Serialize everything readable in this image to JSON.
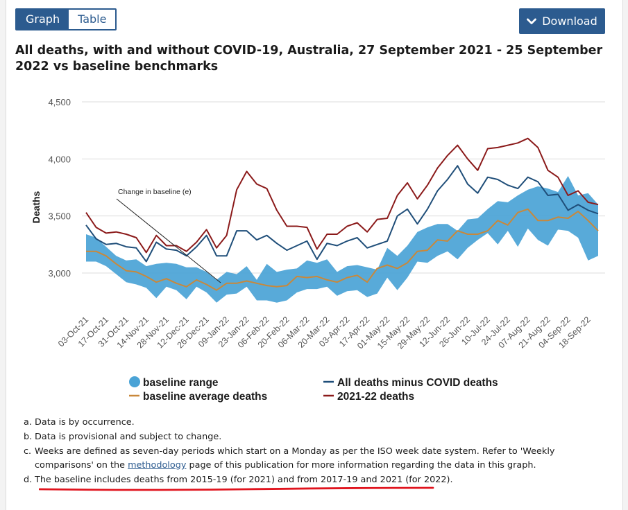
{
  "toggle": {
    "graph_label": "Graph",
    "table_label": "Table"
  },
  "download": {
    "label": "Download",
    "icon": "chevron-down-icon"
  },
  "title": "All deaths, with and without COVID-19, Australia, 27 September 2021 - 25 September 2022 vs baseline benchmarks",
  "annotation": "Change in baseline (e)",
  "legend": {
    "baseline_range": "baseline range",
    "baseline_average": "baseline average deaths",
    "minus_covid": "All deaths minus COVID deaths",
    "deaths_2122": "2021-22 deaths"
  },
  "notes": {
    "a": {
      "label": "a.",
      "text": "Data is by occurrence."
    },
    "b": {
      "label": "b.",
      "text": "Data is provisional and subject to change."
    },
    "c": {
      "label": "c.",
      "text_1": "Weeks are defined as seven-day periods which start on a Monday as per the ISO week date system. Refer to 'Weekly comparisons' on the ",
      "link": "methodology",
      "text_2": " page of this publication for more information regarding the data in this graph."
    },
    "d": {
      "label": "d.",
      "text": "The baseline includes deaths from 2015-19 (for 2021) and from 2017-19 and 2021 (for 2022)."
    }
  },
  "colors": {
    "baseline_range": "#4aa3d6",
    "baseline_average": "#c9883a",
    "minus_covid": "#1f4e79",
    "deaths_2122": "#8b1a1a",
    "highlight": "#e0141e",
    "accent": "#2c5b8f"
  },
  "chart_data": {
    "type": "line",
    "title": "All deaths, with and without COVID-19, Australia, 27 September 2021 - 25 September 2022 vs baseline benchmarks",
    "ylabel": "Deaths",
    "xlabel": "",
    "ylim": [
      2700,
      4500
    ],
    "yticks": [
      3000,
      3500,
      4000,
      4500
    ],
    "ytick_labels": [
      "3,000",
      "3,500",
      "4,000",
      "4,500"
    ],
    "grid": true,
    "legend_position": "bottom",
    "x_tick_labels": [
      "03-Oct-21",
      "17-Oct-21",
      "31-Oct-21",
      "14-Nov-21",
      "28-Nov-21",
      "12-Dec-21",
      "26-Dec-21",
      "09-Jan-22",
      "23-Jan-22",
      "06-Feb-22",
      "20-Feb-22",
      "06-Mar-22",
      "20-Mar-22",
      "03-Apr-22",
      "17-Apr-22",
      "01-May-22",
      "15-May-22",
      "29-May-22",
      "12-Jun-22",
      "26-Jun-22",
      "10-Jul-22",
      "24-Jul-22",
      "07-Aug-22",
      "21-Aug-22",
      "04-Sep-22",
      "18-Sep-22"
    ],
    "x": [
      "03-Oct-21",
      "10-Oct-21",
      "17-Oct-21",
      "24-Oct-21",
      "31-Oct-21",
      "07-Nov-21",
      "14-Nov-21",
      "21-Nov-21",
      "28-Nov-21",
      "05-Dec-21",
      "12-Dec-21",
      "19-Dec-21",
      "26-Dec-21",
      "02-Jan-22",
      "09-Jan-22",
      "16-Jan-22",
      "23-Jan-22",
      "30-Jan-22",
      "06-Feb-22",
      "13-Feb-22",
      "20-Feb-22",
      "27-Feb-22",
      "06-Mar-22",
      "13-Mar-22",
      "20-Mar-22",
      "27-Mar-22",
      "03-Apr-22",
      "10-Apr-22",
      "17-Apr-22",
      "24-Apr-22",
      "01-May-22",
      "08-May-22",
      "15-May-22",
      "22-May-22",
      "29-May-22",
      "05-Jun-22",
      "12-Jun-22",
      "19-Jun-22",
      "26-Jun-22",
      "03-Jul-22",
      "10-Jul-22",
      "17-Jul-22",
      "24-Jul-22",
      "31-Jul-22",
      "07-Aug-22",
      "14-Aug-22",
      "21-Aug-22",
      "28-Aug-22",
      "04-Sep-22",
      "11-Sep-22",
      "18-Sep-22",
      "25-Sep-22"
    ],
    "series": [
      {
        "name": "baseline range",
        "kind": "range",
        "low": [
          3100,
          3100,
          3060,
          2990,
          2920,
          2900,
          2870,
          2780,
          2880,
          2850,
          2770,
          2880,
          2830,
          2740,
          2810,
          2820,
          2880,
          2760,
          2760,
          2740,
          2760,
          2830,
          2860,
          2860,
          2880,
          2800,
          2840,
          2850,
          2790,
          2820,
          2960,
          2850,
          2960,
          3100,
          3090,
          3150,
          3190,
          3120,
          3220,
          3290,
          3350,
          3250,
          3370,
          3230,
          3390,
          3290,
          3240,
          3380,
          3370,
          3310,
          3110,
          3150
        ],
        "high": [
          3340,
          3310,
          3230,
          3150,
          3110,
          3120,
          3060,
          3080,
          3090,
          3080,
          3050,
          3050,
          3010,
          2940,
          3010,
          2990,
          3060,
          2940,
          3080,
          3010,
          3030,
          3040,
          3110,
          3090,
          3120,
          3010,
          3060,
          3070,
          3050,
          3030,
          3220,
          3150,
          3240,
          3360,
          3400,
          3430,
          3430,
          3370,
          3470,
          3480,
          3560,
          3630,
          3620,
          3680,
          3730,
          3760,
          3740,
          3710,
          3850,
          3680,
          3700,
          3600
        ]
      },
      {
        "name": "baseline average deaths",
        "kind": "line",
        "values": [
          3190,
          3190,
          3150,
          3080,
          3020,
          3010,
          2970,
          2920,
          2950,
          2910,
          2880,
          2940,
          2900,
          2850,
          2910,
          2910,
          2930,
          2910,
          2890,
          2880,
          2890,
          2970,
          2960,
          2970,
          2940,
          2920,
          2960,
          2980,
          2920,
          3040,
          3070,
          3040,
          3090,
          3190,
          3200,
          3290,
          3280,
          3370,
          3340,
          3340,
          3370,
          3460,
          3420,
          3530,
          3560,
          3460,
          3460,
          3490,
          3480,
          3540,
          3460,
          3370
        ]
      },
      {
        "name": "All deaths minus COVID deaths",
        "kind": "line",
        "values": [
          3420,
          3300,
          3250,
          3260,
          3230,
          3220,
          3100,
          3270,
          3210,
          3200,
          3150,
          3230,
          3330,
          3150,
          3150,
          3370,
          3370,
          3290,
          3330,
          3260,
          3200,
          3240,
          3280,
          3120,
          3260,
          3240,
          3280,
          3310,
          3220,
          3250,
          3280,
          3500,
          3560,
          3430,
          3560,
          3720,
          3820,
          3940,
          3780,
          3700,
          3840,
          3820,
          3770,
          3740,
          3840,
          3800,
          3680,
          3690,
          3550,
          3600,
          3550,
          3520
        ]
      },
      {
        "name": "2021-22 deaths",
        "kind": "line",
        "values": [
          3530,
          3400,
          3350,
          3360,
          3340,
          3310,
          3180,
          3330,
          3240,
          3240,
          3190,
          3270,
          3380,
          3220,
          3330,
          3730,
          3890,
          3780,
          3740,
          3550,
          3410,
          3410,
          3400,
          3210,
          3340,
          3340,
          3410,
          3440,
          3360,
          3470,
          3480,
          3680,
          3790,
          3650,
          3770,
          3920,
          4030,
          4120,
          4000,
          3900,
          4090,
          4100,
          4120,
          4140,
          4180,
          4100,
          3900,
          3840,
          3680,
          3720,
          3620,
          3600
        ]
      }
    ]
  }
}
